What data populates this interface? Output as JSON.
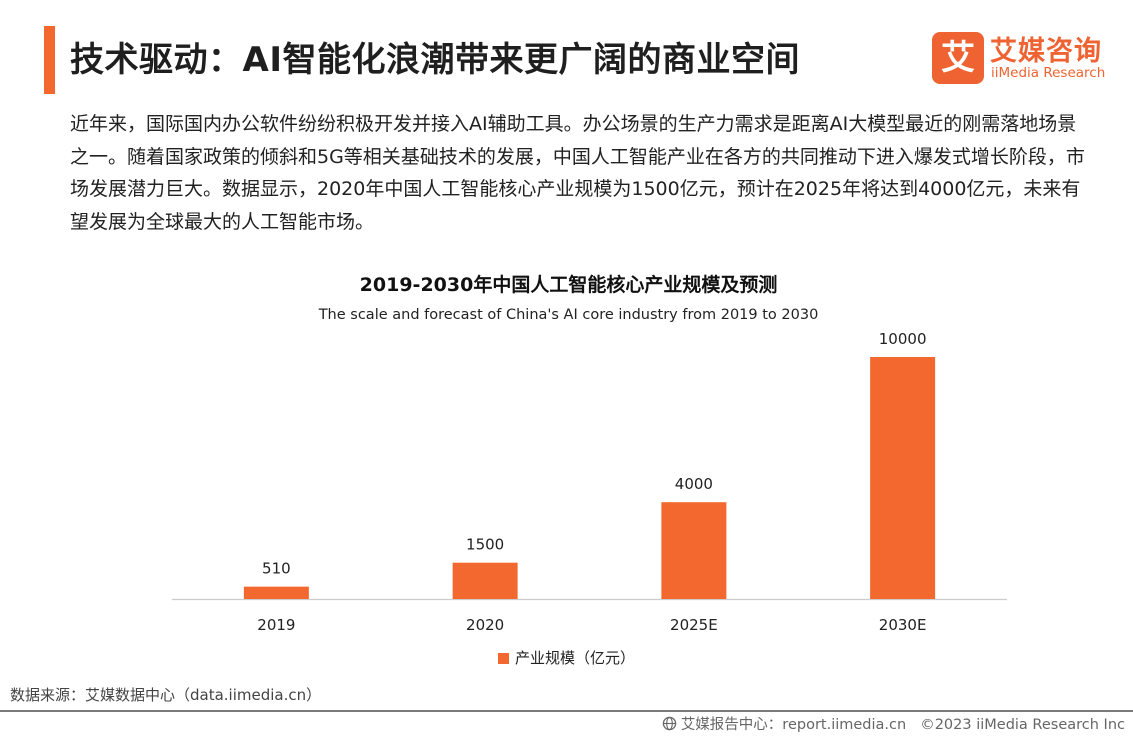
{
  "header": {
    "title": "技术驱动：AI智能化浪潮带来更广阔的商业空间",
    "logo_glyph": "艾",
    "logo_cn": "艾媒咨询",
    "logo_en": "iiMedia Research"
  },
  "intro_text": "近年来，国际国内办公软件纷纷积极开发并接入AI辅助工具。办公场景的生产力需求是距离AI大模型最近的刚需落地场景之一。随着国家政策的倾斜和5G等相关基础技术的发展，中国人工智能产业在各方的共同推动下进入爆发式增长阶段，市场发展潜力巨大。数据显示，2020年中国人工智能核心产业规模为1500亿元，预计在2025年将达到4000亿元，未来有望发展为全球最大的人工智能市场。",
  "chart_data": {
    "type": "bar",
    "title": "2019-2030年中国人工智能核心产业规模及预测",
    "subtitle": "The scale and forecast of China's AI core industry from 2019 to 2030",
    "categories": [
      "2019",
      "2020",
      "2025E",
      "2030E"
    ],
    "series": [
      {
        "name": "产业规模（亿元）",
        "values": [
          510,
          1500,
          4000,
          10000
        ],
        "color": "#f2682f"
      }
    ],
    "ylim": [
      0,
      10000
    ],
    "grid": false,
    "legend": "bottom-center"
  },
  "source_text": "数据来源：艾媒数据中心（data.iimedia.cn）",
  "footer": {
    "report_text": "艾媒报告中心：report.iimedia.cn",
    "copyright_text": "©2023  iiMedia Research  Inc"
  },
  "colors": {
    "accent": "#f2682f",
    "axis": "#cccccc"
  }
}
